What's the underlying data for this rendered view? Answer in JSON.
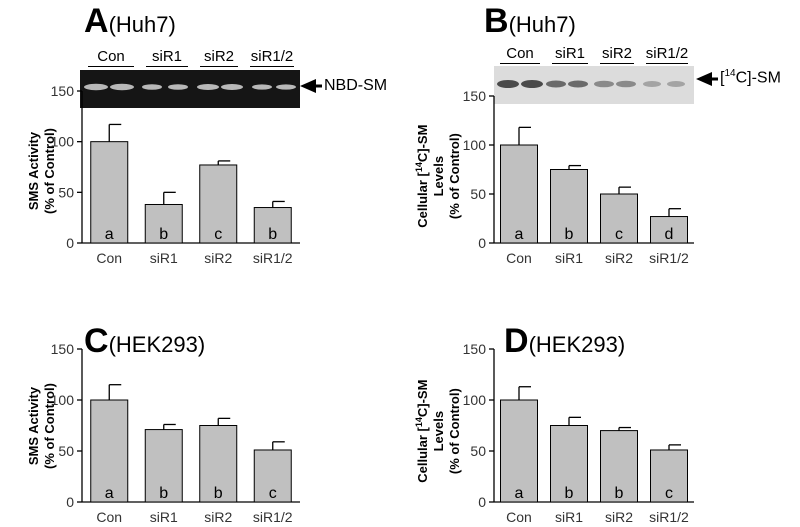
{
  "panels": {
    "A": {
      "letter": "A",
      "cell": "(Huh7)",
      "ylabel_lines": [
        "SMS Activity",
        "(% of Control)"
      ]
    },
    "B": {
      "letter": "B",
      "cell": "(Huh7)",
      "ylabel_lines": [
        "Cellular [14C]-SM",
        "Levels",
        "(% of Control)"
      ],
      "ylabel_sup": "14"
    },
    "C": {
      "letter": "C",
      "cell": "(HEK293)",
      "ylabel_lines": [
        "SMS Activity",
        "(% of Control)"
      ]
    },
    "D": {
      "letter": "D",
      "cell": "(HEK293)",
      "ylabel_lines": [
        "Cellular [14C]-SM",
        "Levels",
        "(% of Control)"
      ],
      "ylabel_sup": "14"
    }
  },
  "blots": {
    "A": {
      "groups": [
        "Con",
        "siR1",
        "siR2",
        "siR1/2"
      ],
      "label": "NBD-SM"
    },
    "B": {
      "groups": [
        "Con",
        "siR1",
        "siR2",
        "siR1/2"
      ],
      "label_pre": "[",
      "label_sup": "14",
      "label_post": "C]-SM"
    }
  },
  "chart_data": [
    {
      "panel": "A",
      "type": "bar",
      "categories": [
        "Con",
        "siR1",
        "siR2",
        "siR1/2"
      ],
      "values": [
        100,
        38,
        77,
        35
      ],
      "errors": [
        17,
        12,
        4,
        6
      ],
      "letters": [
        "a",
        "b",
        "c",
        "b"
      ],
      "ylim": [
        0,
        150
      ],
      "yticks": [
        0,
        50,
        100,
        150
      ],
      "ylabel": "SMS Activity (% of Control)",
      "bar_color": "#c0c0c0"
    },
    {
      "panel": "B",
      "type": "bar",
      "categories": [
        "Con",
        "siR1",
        "siR2",
        "siR1/2"
      ],
      "values": [
        100,
        75,
        50,
        27
      ],
      "errors": [
        18,
        4,
        7,
        8
      ],
      "letters": [
        "a",
        "b",
        "c",
        "d"
      ],
      "ylim": [
        0,
        150
      ],
      "yticks": [
        0,
        50,
        100,
        150
      ],
      "ylabel": "Cellular [14C]-SM Levels (% of Control)",
      "bar_color": "#c0c0c0"
    },
    {
      "panel": "C",
      "type": "bar",
      "categories": [
        "Con",
        "siR1",
        "siR2",
        "siR1/2"
      ],
      "values": [
        100,
        71,
        75,
        51
      ],
      "errors": [
        15,
        5,
        7,
        8
      ],
      "letters": [
        "a",
        "b",
        "b",
        "c"
      ],
      "ylim": [
        0,
        150
      ],
      "yticks": [
        0,
        50,
        100,
        150
      ],
      "ylabel": "SMS Activity (% of Control)",
      "bar_color": "#c0c0c0"
    },
    {
      "panel": "D",
      "type": "bar",
      "categories": [
        "Con",
        "siR1",
        "siR2",
        "siR1/2"
      ],
      "values": [
        100,
        75,
        70,
        51
      ],
      "errors": [
        13,
        8,
        3,
        5
      ],
      "letters": [
        "a",
        "b",
        "b",
        "c"
      ],
      "ylim": [
        0,
        150
      ],
      "yticks": [
        0,
        50,
        100,
        150
      ],
      "ylabel": "Cellular [14C]-SM Levels (% of Control)",
      "bar_color": "#c0c0c0"
    }
  ]
}
